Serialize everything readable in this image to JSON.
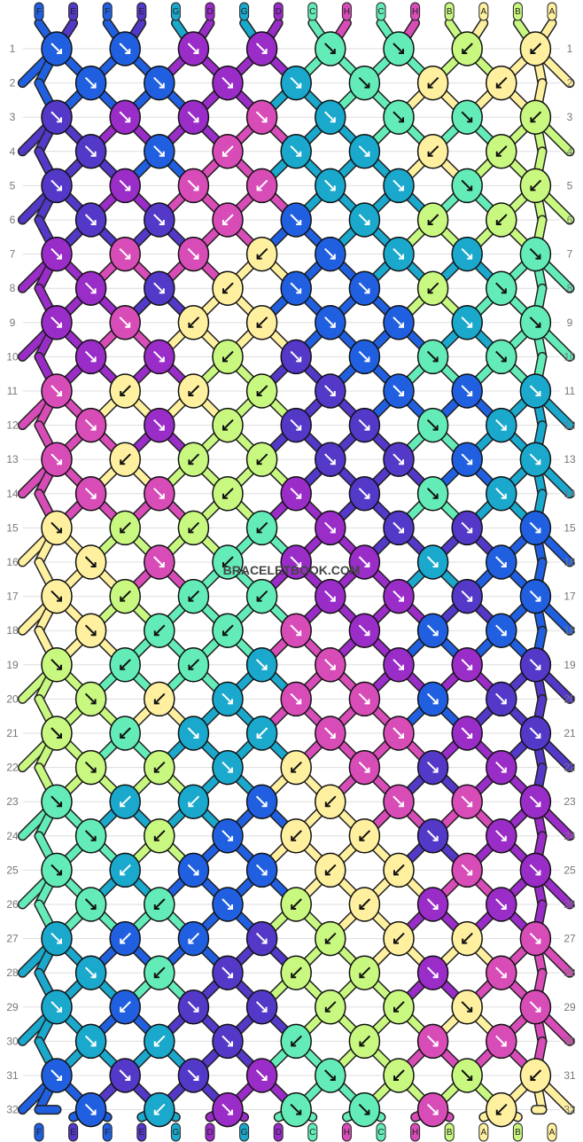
{
  "watermark": "BRACELETBOOK.COM",
  "colors": {
    "A": "#fff0a0",
    "B": "#c8f880",
    "C": "#64ecb8",
    "D": "#9a2cc8",
    "E": "#5438c8",
    "F": "#2060e0",
    "G": "#1aa8cc",
    "H": "#d84cb8"
  },
  "strings_top": [
    "F",
    "E",
    "F",
    "E",
    "G",
    "D",
    "G",
    "D",
    "C",
    "H",
    "C",
    "H",
    "B",
    "A",
    "B",
    "A"
  ],
  "strings_bottom": [
    "F",
    "E",
    "F",
    "E",
    "G",
    "D",
    "G",
    "D",
    "C",
    "H",
    "C",
    "H",
    "B",
    "A",
    "B",
    "A"
  ],
  "rows": [
    "1",
    "2",
    "3",
    "4",
    "5",
    "6",
    "7",
    "8",
    "9",
    "10",
    "11",
    "12",
    "13",
    "14",
    "15",
    "16",
    "17",
    "18",
    "19",
    "20",
    "21",
    "22",
    "23",
    "24",
    "25",
    "26",
    "27",
    "28",
    "29",
    "30",
    "31",
    "32"
  ],
  "knots": [
    [
      "Fr",
      "Fr",
      "Dr",
      "Dr",
      "Cr",
      "Cr",
      "Bl",
      "Al"
    ],
    [
      "Fr",
      "Fr",
      "Dr",
      "Gr",
      "Cr",
      "Al",
      "Al"
    ],
    [
      "Er",
      "Dr",
      "Dr",
      "Hr",
      "Gr",
      "Cr",
      "Cr",
      "Bl"
    ],
    [
      "Er",
      "Fr",
      "Hl",
      "Gr",
      "Gr",
      "Al",
      "Bl"
    ],
    [
      "Er",
      "Dr",
      "Hr",
      "Hl",
      "Gr",
      "Gr",
      "Cr",
      "Bl"
    ],
    [
      "Er",
      "Er",
      "Hl",
      "Fr",
      "Gr",
      "Bl",
      "Bl"
    ],
    [
      "Dr",
      "Hr",
      "Hr",
      "Al",
      "Fr",
      "Gr",
      "Gr",
      "Cr"
    ],
    [
      "Dr",
      "Er",
      "Al",
      "Fr",
      "Fr",
      "Bl",
      "Cr"
    ],
    [
      "Dr",
      "Hr",
      "Al",
      "Al",
      "Fr",
      "Fr",
      "Gr",
      "Cr"
    ],
    [
      "Dr",
      "Dr",
      "Bl",
      "Er",
      "Fr",
      "Cr",
      "Cr"
    ],
    [
      "Hr",
      "Al",
      "Al",
      "Bl",
      "Er",
      "Fr",
      "Fr",
      "Gr"
    ],
    [
      "Hr",
      "Dr",
      "Bl",
      "Er",
      "Er",
      "Cr",
      "Gr"
    ],
    [
      "Hr",
      "Al",
      "Bl",
      "Bl",
      "Er",
      "Er",
      "Fr",
      "Gr"
    ],
    [
      "Hr",
      "Hr",
      "Bl",
      "Dr",
      "Er",
      "Cr",
      "Gr"
    ],
    [
      "Ar",
      "Bl",
      "Bl",
      "Cl",
      "Dr",
      "Er",
      "Er",
      "Fr"
    ],
    [
      "Ar",
      "Hr",
      "Cl",
      "Dr",
      "Dr",
      "Gr",
      "Fr"
    ],
    [
      "Ar",
      "Bl",
      "Cl",
      "Cl",
      "Dr",
      "Dr",
      "Er",
      "Fr"
    ],
    [
      "Ar",
      "Cl",
      "Cl",
      "Hr",
      "Dr",
      "Fr",
      "Fr"
    ],
    [
      "Br",
      "Cl",
      "Cl",
      "Gr",
      "Hr",
      "Dr",
      "Dr",
      "Er"
    ],
    [
      "Br",
      "Al",
      "Gr",
      "Hr",
      "Hr",
      "Fr",
      "Er"
    ],
    [
      "Br",
      "Cl",
      "Gr",
      "Gl",
      "Hr",
      "Hr",
      "Dr",
      "Er"
    ],
    [
      "Br",
      "Bl",
      "Gr",
      "Al",
      "Hr",
      "Er",
      "Dr"
    ],
    [
      "Cr",
      "Gl",
      "Gl",
      "Fr",
      "Al",
      "Hr",
      "Hr",
      "Dr"
    ],
    [
      "Cr",
      "Bl",
      "Fr",
      "Al",
      "Al",
      "Er",
      "Dr"
    ],
    [
      "Cr",
      "Gl",
      "Fr",
      "Fr",
      "Al",
      "Al",
      "Hr",
      "Dr"
    ],
    [
      "Cr",
      "Cl",
      "Fr",
      "Bl",
      "Al",
      "Dr",
      "Dr"
    ],
    [
      "Gr",
      "Fl",
      "Fl",
      "Er",
      "Bl",
      "Al",
      "Al",
      "Hr"
    ],
    [
      "Gr",
      "Cl",
      "Er",
      "Bl",
      "Bl",
      "Dr",
      "Hr"
    ],
    [
      "Gr",
      "Fl",
      "Er",
      "Er",
      "Bl",
      "Bl",
      "Ar",
      "Hr"
    ],
    [
      "Gr",
      "Gl",
      "Er",
      "Cl",
      "Bl",
      "Hr",
      "Hr"
    ],
    [
      "Fr",
      "Er",
      "Er",
      "Dr",
      "Cr",
      "Bl",
      "Br",
      "Al"
    ],
    [
      "Fr",
      "Gl",
      "Dr",
      "Cr",
      "Cr",
      "Hr",
      "Al"
    ]
  ]
}
